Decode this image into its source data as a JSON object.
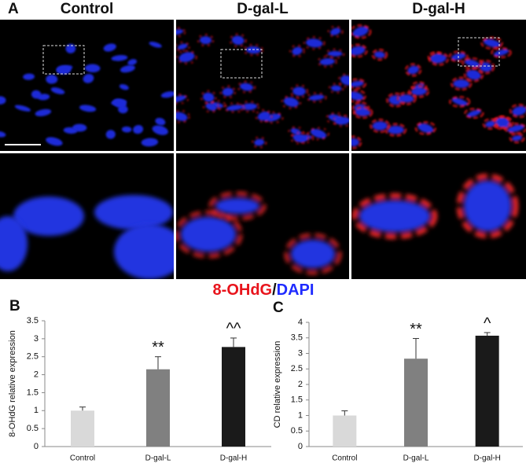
{
  "figure": {
    "panel_label": "A",
    "columns": [
      "Control",
      "D-gal-L",
      "D-gal-H"
    ],
    "legend": [
      {
        "text": "8-OHdG",
        "color": "#e8141c"
      },
      {
        "text": "/",
        "color": "#111111"
      },
      {
        "text": "DAPI",
        "color": "#1f2bff"
      }
    ]
  },
  "chart_data": [
    {
      "type": "bar",
      "panel_label": "B",
      "ylabel": "8-OHdG relative expression",
      "categories": [
        "Control",
        "D-gal-L",
        "D-gal-H"
      ],
      "values": [
        1.0,
        2.15,
        2.77
      ],
      "errors": [
        0.1,
        0.35,
        0.25
      ],
      "annotations": [
        null,
        "**",
        "^^"
      ],
      "colors": [
        "#d9d9d9",
        "#808080",
        "#1a1a1a"
      ],
      "ylim": [
        0,
        3.5
      ],
      "yticks": [
        0,
        0.5,
        1,
        1.5,
        2,
        2.5,
        3,
        3.5
      ]
    },
    {
      "type": "bar",
      "panel_label": "C",
      "ylabel": "CD relative expression",
      "categories": [
        "Control",
        "D-gal-L",
        "D-gal-H"
      ],
      "values": [
        1.0,
        2.83,
        3.57
      ],
      "errors": [
        0.15,
        0.65,
        0.1
      ],
      "annotations": [
        null,
        "**",
        "^"
      ],
      "colors": [
        "#d9d9d9",
        "#808080",
        "#1a1a1a"
      ],
      "ylim": [
        0,
        4
      ],
      "yticks": [
        0,
        0.5,
        1,
        1.5,
        2,
        2.5,
        3,
        3.5,
        4
      ]
    }
  ]
}
